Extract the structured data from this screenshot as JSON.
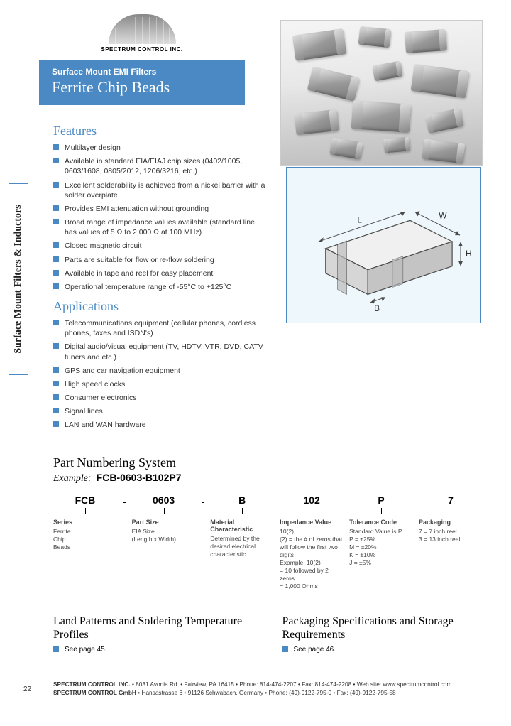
{
  "logo": {
    "company": "SPECTRUM CONTROL INC."
  },
  "banner": {
    "subtitle": "Surface Mount EMI Filters",
    "title": "Ferrite Chip Beads"
  },
  "sidebar_tab": "Surface Mount Filters & Inductors",
  "features": {
    "heading": "Features",
    "items": [
      "Multilayer design",
      "Available in standard EIA/EIAJ chip sizes (0402/1005, 0603/1608, 0805/2012, 1206/3216, etc.)",
      "Excellent solderability is achieved from a nickel barrier with a solder overplate",
      "Provides EMI attenuation without grounding",
      "Broad range of impedance values available (standard line has values of 5 Ω to 2,000 Ω at 100 MHz)",
      "Closed magnetic circuit",
      "Parts are suitable for flow or re-flow soldering",
      "Available in tape and reel for easy placement",
      "Operational temperature range of -55°C to +125°C"
    ]
  },
  "applications": {
    "heading": "Applications",
    "items": [
      "Telecommunications equipment (cellular phones, cordless phones, faxes and ISDN's)",
      "Digital audio/visual equipment (TV, HDTV, VTR, DVD, CATV tuners and etc.)",
      "GPS and car navigation equipment",
      "High speed clocks",
      "Consumer electronics",
      "Signal lines",
      "LAN and WAN hardware"
    ]
  },
  "diagram": {
    "labels": {
      "L": "L",
      "W": "W",
      "H": "H",
      "B": "B"
    },
    "stroke": "#4b4b4b",
    "fill": "#e5e5e5",
    "fill_end": "#bcbcbc"
  },
  "part_numbering": {
    "heading": "Part Numbering System",
    "example_label": "Example:",
    "example_code": "FCB-0603-B102P7",
    "cols": [
      {
        "code": "FCB",
        "label": "Series",
        "desc": "Ferrite\nChip\nBeads"
      },
      {
        "code": "0603",
        "label": "Part Size",
        "desc": "EIA Size\n(Length x Width)"
      },
      {
        "code": "B",
        "label": "Material Characteristic",
        "desc": "Determined by the desired electrical characteristic"
      },
      {
        "code": "102",
        "label": "Impedance Value",
        "desc": "10(2)\n(2) = the # of zeros that will follow the first two digits\nExample: 10(2)\n= 10 followed by 2 zeros\n= 1,000 Ohms"
      },
      {
        "code": "P",
        "label": "Tolerance Code",
        "desc": "Standard Value is P\nP = ±25%\nM = ±20%\nK = ±10%\nJ = ±5%"
      },
      {
        "code": "7",
        "label": "Packaging",
        "desc": "7 = 7 inch reel\n3 = 13 inch reel"
      }
    ]
  },
  "bottom_left": {
    "heading": "Land Patterns and Soldering Temperature Profiles",
    "see": "See page 45."
  },
  "bottom_right": {
    "heading": "Packaging Specifications and Storage Requirements",
    "see": "See page 46."
  },
  "footer": {
    "page_num": "22",
    "line1_bold": "SPECTRUM CONTROL INC.",
    "line1_rest": " •  8031 Avonia Rd.  •  Fairview, PA 16415  •  Phone: 814-474-2207  •  Fax: 814-474-2208  •  Web site: www.spectrumcontrol.com",
    "line2_bold": "SPECTRUM CONTROL GmbH",
    "line2_rest": " •  Hansastrasse 6  •  91126 Schwabach, Germany  •  Phone: (49)-9122-795-0  •  Fax: (49)-9122-795-58"
  },
  "style": {
    "accent": "#4a89c4",
    "page_bg": "#ffffff",
    "diagram_bg": "#eef7fb"
  }
}
